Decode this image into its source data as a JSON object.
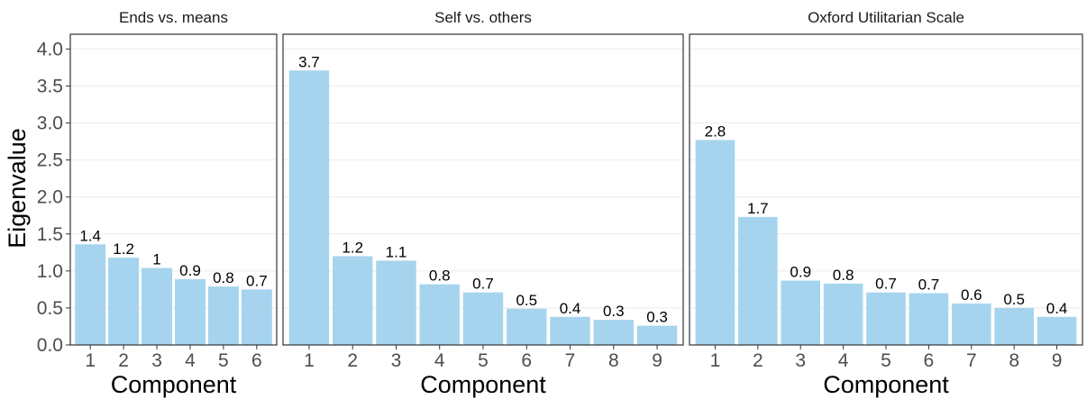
{
  "colors": {
    "bar": "#a6d4ee",
    "grid": "#ebebeb",
    "panel_border": "#333333",
    "tick_text": "#4d4d4d",
    "label_text": "#000000"
  },
  "chart_data": [
    {
      "type": "bar",
      "title": "Ends vs. means",
      "xlabel": "Component",
      "ylabel": "Eigenvalue",
      "categories": [
        "1",
        "2",
        "3",
        "4",
        "5",
        "6"
      ],
      "values": [
        1.36,
        1.18,
        1.04,
        0.89,
        0.79,
        0.75
      ],
      "data_labels": [
        "1.4",
        "1.2",
        "1",
        "0.9",
        "0.8",
        "0.7"
      ],
      "ylim": [
        0,
        4.2
      ],
      "yticks": [
        "0.0",
        "0.5",
        "1.0",
        "1.5",
        "2.0",
        "2.5",
        "3.0",
        "3.5",
        "4.0"
      ],
      "grid": true
    },
    {
      "type": "bar",
      "title": "Self vs. others",
      "xlabel": "Component",
      "ylabel": "",
      "categories": [
        "1",
        "2",
        "3",
        "4",
        "5",
        "6",
        "7",
        "8",
        "9"
      ],
      "values": [
        3.71,
        1.2,
        1.14,
        0.82,
        0.71,
        0.49,
        0.38,
        0.34,
        0.26
      ],
      "data_labels": [
        "3.7",
        "1.2",
        "1.1",
        "0.8",
        "0.7",
        "0.5",
        "0.4",
        "0.3",
        "0.3"
      ],
      "ylim": [
        0,
        4.2
      ],
      "grid": true
    },
    {
      "type": "bar",
      "title": "Oxford Utilitarian Scale",
      "xlabel": "Component",
      "ylabel": "",
      "categories": [
        "1",
        "2",
        "3",
        "4",
        "5",
        "6",
        "7",
        "8",
        "9"
      ],
      "values": [
        2.77,
        1.73,
        0.87,
        0.83,
        0.71,
        0.7,
        0.56,
        0.5,
        0.38
      ],
      "data_labels": [
        "2.8",
        "1.7",
        "0.9",
        "0.8",
        "0.7",
        "0.7",
        "0.6",
        "0.5",
        "0.4"
      ],
      "ylim": [
        0,
        4.2
      ],
      "grid": true
    }
  ]
}
